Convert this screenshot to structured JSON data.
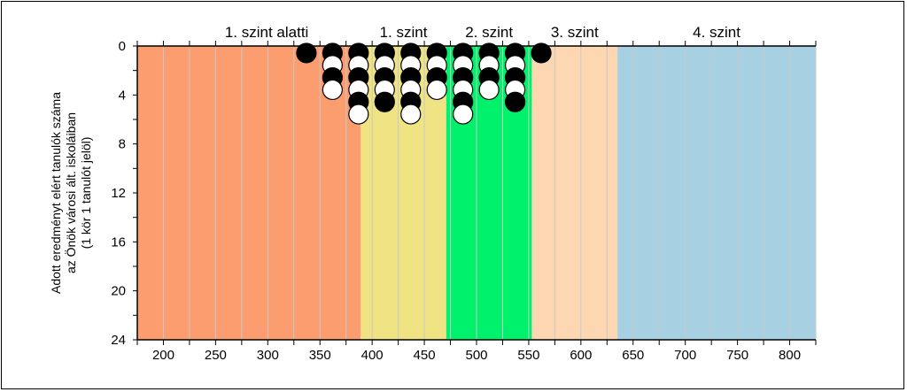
{
  "chart_data": {
    "type": "scatter",
    "subtype": "dot-strip",
    "ylabel_lines": [
      "Adott eredményt elért tanulók száma",
      "az Önök városi ált. iskoláiban",
      "(1 kör 1 tanulót jelöl)"
    ],
    "x_ticks": [
      200,
      250,
      300,
      350,
      400,
      450,
      500,
      550,
      600,
      650,
      700,
      750,
      800
    ],
    "y_ticks": [
      0,
      4,
      8,
      12,
      16,
      20,
      24
    ],
    "xlim": [
      175,
      825
    ],
    "ylim": [
      0,
      24
    ],
    "y_inverted": true,
    "grid_x_step": 25,
    "bands": [
      {
        "label": "1. szint alatti",
        "from": 175,
        "to": 389,
        "color": "#fc9d70"
      },
      {
        "label": "1. szint",
        "from": 389,
        "to": 471,
        "color": "#f0e384"
      },
      {
        "label": "2. szint",
        "from": 471,
        "to": 553,
        "color": "#00f16c"
      },
      {
        "label": "3. szint",
        "from": 553,
        "to": 635,
        "color": "#fdd7b1"
      },
      {
        "label": "4. szint",
        "from": 635,
        "to": 825,
        "color": "#a7d1e2"
      }
    ],
    "columns": [
      {
        "x": 337,
        "dots": [
          "black"
        ]
      },
      {
        "x": 362,
        "dots": [
          "black",
          "white",
          "black",
          "white"
        ]
      },
      {
        "x": 387,
        "dots": [
          "black",
          "white",
          "black",
          "white",
          "black",
          "white"
        ]
      },
      {
        "x": 412,
        "dots": [
          "black",
          "white",
          "black",
          "white",
          "black"
        ]
      },
      {
        "x": 437,
        "dots": [
          "black",
          "white",
          "black",
          "white",
          "black",
          "white"
        ]
      },
      {
        "x": 462,
        "dots": [
          "black",
          "white",
          "black",
          "white"
        ]
      },
      {
        "x": 487,
        "dots": [
          "black",
          "white",
          "black",
          "white",
          "black",
          "white"
        ]
      },
      {
        "x": 512,
        "dots": [
          "black",
          "white",
          "black",
          "white"
        ]
      },
      {
        "x": 537,
        "dots": [
          "black",
          "white",
          "black",
          "white",
          "black"
        ]
      },
      {
        "x": 562,
        "dots": [
          "black"
        ]
      }
    ]
  }
}
